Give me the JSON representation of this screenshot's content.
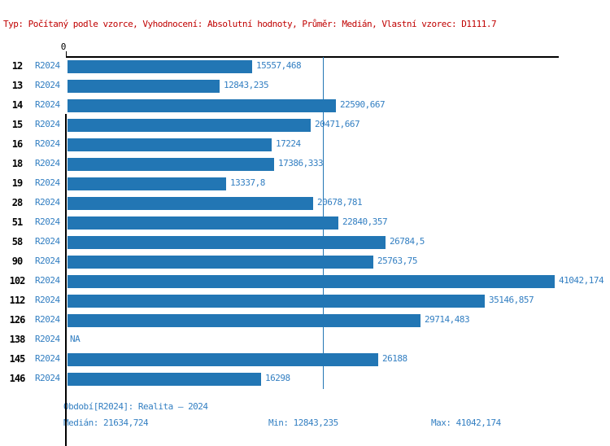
{
  "header": {
    "info_line": "Typ: Počítaný podle vzorce, Vyhodnocení: Absolutní hodnoty, Průměr: Medián, Vlastní vzorec: D1111.7",
    "text_color": "#c00000"
  },
  "chart_data": {
    "type": "bar",
    "orientation": "horizontal",
    "x_axis_zero_label": "0",
    "categories": [
      "12",
      "13",
      "14",
      "15",
      "16",
      "18",
      "19",
      "28",
      "51",
      "58",
      "90",
      "102",
      "112",
      "126",
      "138",
      "145",
      "146"
    ],
    "series_label": "R2024",
    "values": [
      15557.468,
      12843.235,
      22590.667,
      20471.667,
      17224,
      17386.333,
      13337.8,
      20678.781,
      22840.357,
      26784.5,
      25763.75,
      41042.174,
      35146.857,
      29714.483,
      null,
      26188,
      16298
    ],
    "value_labels": [
      "15557,468",
      "12843,235",
      "22590,667",
      "20471,667",
      "17224",
      "17386,333",
      "13337,8",
      "20678,781",
      "22840,357",
      "26784,5",
      "25763,75",
      "41042,174",
      "35146,857",
      "29714,483",
      "NA",
      "26188",
      "16298"
    ],
    "xlim": [
      0,
      41042.174
    ],
    "median_value": 21634.724,
    "min_value": 12843.235,
    "max_value": 41042.174,
    "grid": false,
    "legend": "none",
    "bar_color": "#2276b4",
    "label_color": "#337fc2",
    "axis_color": "#000000",
    "median_line_color": "#2276b4"
  },
  "footer": {
    "period_line": "Období[R2024]: Realita – 2024",
    "median_label": "Medián: 21634,724",
    "min_label": "Min: 12843,235",
    "max_label": "Max: 41042,174"
  }
}
